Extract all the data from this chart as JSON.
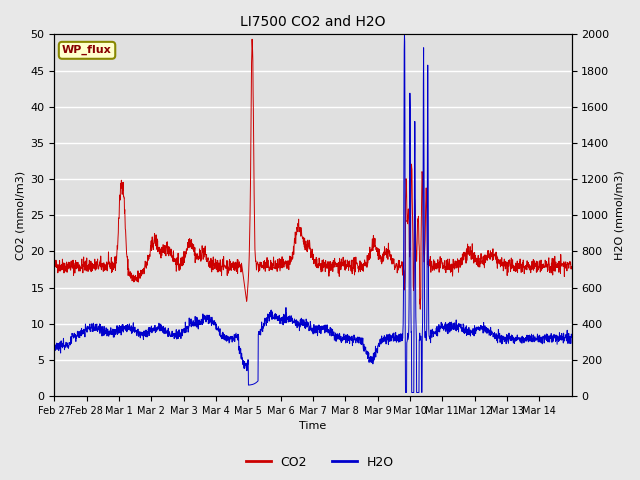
{
  "title": "LI7500 CO2 and H2O",
  "xlabel": "Time",
  "ylabel_left": "CO2 (mmol/m3)",
  "ylabel_right": "H2O (mmol/m3)",
  "annotation": "WP_flux",
  "co2_color": "#cc0000",
  "h2o_color": "#0000cc",
  "fig_bg_color": "#e8e8e8",
  "plot_bg_color": "#e0e0e0",
  "ylim_left": [
    0,
    50
  ],
  "ylim_right": [
    0,
    2000
  ],
  "xtick_labels": [
    "Feb 27",
    "Feb 28",
    "Mar 1",
    "Mar 2",
    "Mar 3",
    "Mar 4",
    "Mar 5",
    "Mar 6",
    "Mar 7",
    "Mar 8",
    "Mar 9",
    "Mar 10",
    "Mar 11",
    "Mar 12",
    "Mar 13",
    "Mar 14"
  ],
  "n_points": 2000
}
